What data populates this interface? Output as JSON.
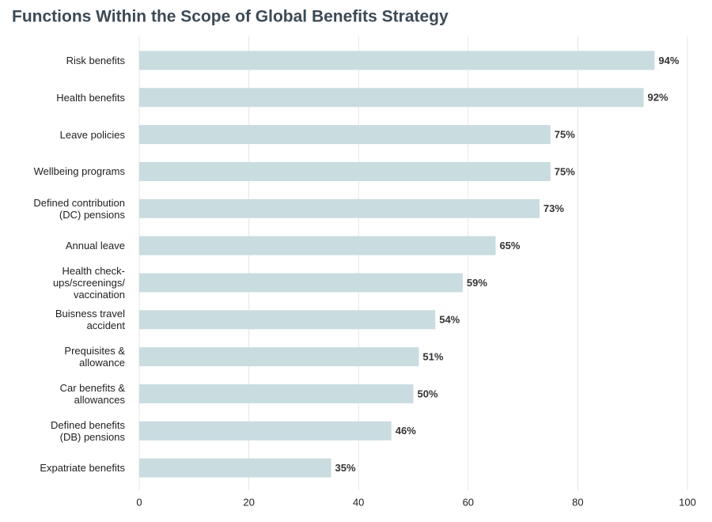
{
  "chart_data": {
    "type": "bar",
    "orientation": "horizontal",
    "title": "Functions Within the Scope of Global Benefits Strategy",
    "categories": [
      "Risk benefits",
      "Health benefits",
      "Leave policies",
      "Wellbeing programs",
      "Defined contribution\n(DC) pensions",
      "Annual leave",
      "Health check-\nups/screenings/\nvaccination",
      "Buisness travel\naccident",
      "Prequisites &\nallowance",
      "Car benefits &\nallowances",
      "Defined benefits\n(DB) pensions",
      "Expatriate benefits"
    ],
    "values": [
      94,
      92,
      75,
      75,
      73,
      65,
      59,
      54,
      51,
      50,
      46,
      35
    ],
    "value_labels": [
      "94%",
      "92%",
      "75%",
      "75%",
      "73%",
      "65%",
      "59%",
      "54%",
      "51%",
      "50%",
      "46%",
      "35%"
    ],
    "color": "#c9dce0",
    "xlim": [
      0,
      100
    ],
    "xticks": [
      0,
      20,
      40,
      60,
      80,
      100
    ],
    "grid": true
  }
}
